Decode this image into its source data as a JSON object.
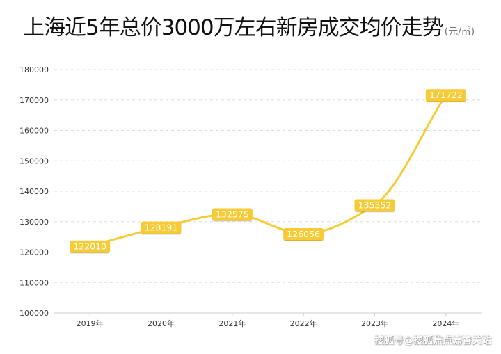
{
  "header": {
    "title": "上海近5年总价3000万左右新房成交均价走势",
    "unit": "(元/㎡)"
  },
  "watermark": "搜狐号@搜狐焦点嘉善关站",
  "colors": {
    "line": "#f7cb35",
    "label_bg": "#f7cb35",
    "grid": "#dddddd"
  },
  "chart_data": {
    "type": "line",
    "categories": [
      "2019年",
      "2020年",
      "2021年",
      "2022年",
      "2023年",
      "2024年"
    ],
    "values": [
      122010,
      128191,
      132575,
      126056,
      135552,
      171722
    ],
    "title": "上海近5年总价3000万左右新房成交均价走势",
    "ylabel": "(元/㎡)",
    "ylim": [
      100000,
      180000
    ],
    "yticks": [
      "180000",
      "170000",
      "160000",
      "150000",
      "140000",
      "130000",
      "120000",
      "110000",
      "100000"
    ],
    "grid": "horizontal-dashed",
    "smooth": true,
    "data_labels": true
  }
}
